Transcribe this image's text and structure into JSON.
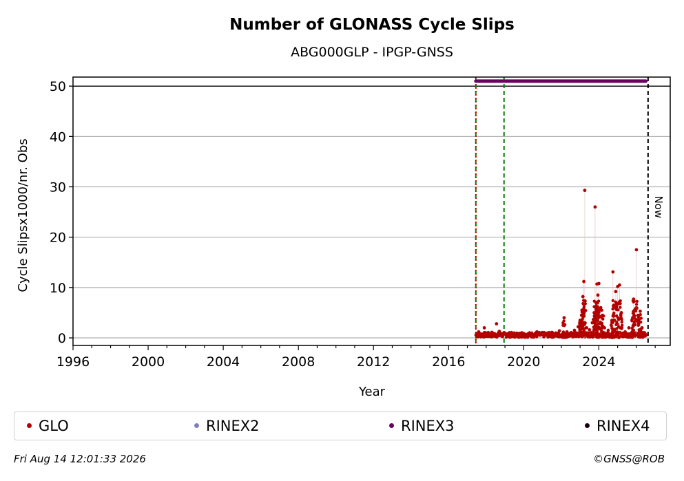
{
  "chart_data": {
    "type": "scatter",
    "title": "Number of GLONASS Cycle Slips",
    "subtitle": "ABG000GLP - IPGP-GNSS",
    "xlabel": "Year",
    "ylabel": "Cycle Slipsx1000/nr. Obs",
    "xlim": [
      1996,
      2027.8
    ],
    "ylim": [
      -1.5,
      51.8
    ],
    "x_ticks": [
      1996,
      2000,
      2004,
      2008,
      2012,
      2016,
      2020,
      2024
    ],
    "y_ticks": [
      0,
      10,
      20,
      30,
      40,
      50
    ],
    "grid": "horizontal",
    "reference_line_y": 50,
    "vertical_lines": [
      {
        "x": 2017.45,
        "color": "#008000",
        "style": "dashed"
      },
      {
        "x": 2017.45,
        "color": "#cc0000",
        "style": "dotted"
      },
      {
        "x": 2018.95,
        "color": "#008000",
        "style": "dashed"
      },
      {
        "x": 2026.62,
        "color": "#000000",
        "style": "dashed",
        "label": "Now"
      }
    ],
    "series": [
      {
        "name": "GLO",
        "color": "#b30000",
        "x_range": [
          2017.45,
          2026.5
        ],
        "baseline_points": [
          [
            2017.5,
            0.8
          ],
          [
            2017.6,
            1.2
          ],
          [
            2017.8,
            0.5
          ],
          [
            2017.9,
            2.0
          ],
          [
            2018.1,
            0.7
          ],
          [
            2018.3,
            1.1
          ],
          [
            2018.5,
            0.4
          ],
          [
            2018.55,
            2.8
          ],
          [
            2018.7,
            1.3
          ],
          [
            2018.9,
            0.6
          ],
          [
            2019.1,
            0.8
          ],
          [
            2019.3,
            0.5
          ],
          [
            2019.5,
            0.9
          ],
          [
            2019.7,
            0.4
          ],
          [
            2019.9,
            1.0
          ],
          [
            2020.1,
            0.6
          ],
          [
            2020.3,
            0.8
          ],
          [
            2020.5,
            0.5
          ],
          [
            2020.7,
            1.2
          ],
          [
            2020.9,
            0.7
          ],
          [
            2021.1,
            0.9
          ],
          [
            2021.3,
            0.6
          ],
          [
            2021.5,
            1.1
          ],
          [
            2021.7,
            0.8
          ],
          [
            2021.9,
            1.4
          ],
          [
            2022.1,
            2.5
          ],
          [
            2022.15,
            4.0
          ],
          [
            2022.3,
            1.2
          ],
          [
            2022.5,
            0.9
          ],
          [
            2022.7,
            1.5
          ],
          [
            2022.9,
            2.2
          ],
          [
            2023.0,
            3.5
          ],
          [
            2023.1,
            5.5
          ],
          [
            2023.15,
            8.2
          ],
          [
            2023.2,
            11.2
          ],
          [
            2023.25,
            29.3
          ],
          [
            2023.35,
            2.0
          ],
          [
            2023.5,
            1.6
          ],
          [
            2023.65,
            3.0
          ],
          [
            2023.75,
            5.0
          ],
          [
            2023.8,
            26.0
          ],
          [
            2023.85,
            7.0
          ],
          [
            2023.9,
            10.7
          ],
          [
            2023.95,
            8.5
          ],
          [
            2024.0,
            10.8
          ],
          [
            2024.1,
            6.0
          ],
          [
            2024.2,
            4.5
          ],
          [
            2024.3,
            2.0
          ],
          [
            2024.5,
            1.5
          ],
          [
            2024.7,
            3.5
          ],
          [
            2024.75,
            13.1
          ],
          [
            2024.8,
            6.5
          ],
          [
            2024.9,
            9.2
          ],
          [
            2025.0,
            10.2
          ],
          [
            2025.1,
            10.5
          ],
          [
            2025.2,
            5.0
          ],
          [
            2025.4,
            1.2
          ],
          [
            2025.6,
            2.0
          ],
          [
            2025.8,
            4.0
          ],
          [
            2025.85,
            7.7
          ],
          [
            2025.9,
            5.5
          ],
          [
            2026.0,
            17.5
          ],
          [
            2026.1,
            4.5
          ],
          [
            2026.2,
            5.3
          ],
          [
            2026.3,
            2.0
          ],
          [
            2026.4,
            0.8
          ],
          [
            2026.5,
            0.5
          ]
        ]
      },
      {
        "name": "RINEX2",
        "color": "#8080c0",
        "points": []
      },
      {
        "name": "RINEX3",
        "color": "#6b0060",
        "y": 51,
        "x_range": [
          2017.45,
          2026.5
        ]
      },
      {
        "name": "RINEX4",
        "color": "#1a0010",
        "points": []
      }
    ],
    "legend_position": "bottom"
  },
  "legend": [
    {
      "label": "GLO",
      "color": "#b30000"
    },
    {
      "label": "RINEX2",
      "color": "#8080c0"
    },
    {
      "label": "RINEX3",
      "color": "#6b0060"
    },
    {
      "label": "RINEX4",
      "color": "#1a0010"
    }
  ],
  "footer": {
    "timestamp": "Fri Aug 14 12:01:33 2026",
    "credit": "©GNSS@ROB"
  }
}
